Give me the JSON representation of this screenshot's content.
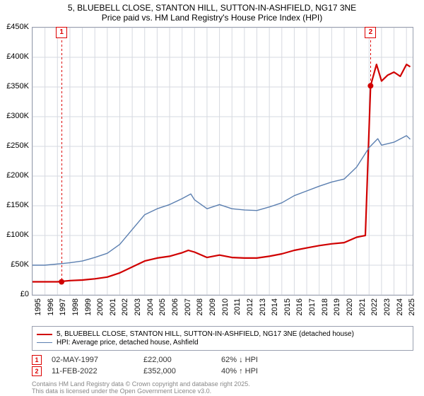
{
  "title": {
    "line1": "5, BLUEBELL CLOSE, STANTON HILL, SUTTON-IN-ASHFIELD, NG17 3NE",
    "line2": "Price paid vs. HM Land Registry's House Price Index (HPI)",
    "fontsize": 12,
    "color": "#000000"
  },
  "chart": {
    "type": "line",
    "background_color": "#ffffff",
    "border_color": "#9aa0b0",
    "grid_color": "#d6d9e0",
    "x": {
      "min": 1995,
      "max": 2025.5,
      "ticks": [
        1995,
        1996,
        1997,
        1998,
        1999,
        2000,
        2001,
        2002,
        2003,
        2004,
        2005,
        2006,
        2007,
        2008,
        2009,
        2010,
        2011,
        2012,
        2013,
        2014,
        2015,
        2016,
        2017,
        2018,
        2019,
        2020,
        2021,
        2022,
        2023,
        2024,
        2025
      ],
      "tick_fontsize": 11
    },
    "y": {
      "min": 0,
      "max": 450000,
      "step": 50000,
      "ticks": [
        0,
        50000,
        100000,
        150000,
        200000,
        250000,
        300000,
        350000,
        400000,
        450000
      ],
      "tick_labels": [
        "£0",
        "£50K",
        "£100K",
        "£150K",
        "£200K",
        "£250K",
        "£300K",
        "£350K",
        "£400K",
        "£450K"
      ],
      "tick_fontsize": 11
    },
    "series": [
      {
        "id": "property",
        "label": "5, BLUEBELL CLOSE, STANTON HILL, SUTTON-IN-ASHFIELD, NG17 3NE (detached house)",
        "color": "#d00000",
        "line_width": 2.2,
        "points": [
          [
            1995,
            22000
          ],
          [
            1996,
            22000
          ],
          [
            1997,
            22000
          ],
          [
            1998,
            24000
          ],
          [
            1999,
            25000
          ],
          [
            2000,
            27000
          ],
          [
            2001,
            30000
          ],
          [
            2002,
            37000
          ],
          [
            2003,
            47000
          ],
          [
            2004,
            57000
          ],
          [
            2005,
            62000
          ],
          [
            2006,
            65000
          ],
          [
            2007,
            71000
          ],
          [
            2007.5,
            75000
          ],
          [
            2008,
            72000
          ],
          [
            2009,
            63000
          ],
          [
            2010,
            67000
          ],
          [
            2011,
            63000
          ],
          [
            2012,
            62000
          ],
          [
            2013,
            62000
          ],
          [
            2014,
            65000
          ],
          [
            2015,
            69000
          ],
          [
            2016,
            75000
          ],
          [
            2017,
            79000
          ],
          [
            2018,
            83000
          ],
          [
            2019,
            86000
          ],
          [
            2020,
            88000
          ],
          [
            2021,
            97000
          ],
          [
            2021.7,
            100000
          ],
          [
            2022.12,
            352000
          ],
          [
            2022.6,
            388000
          ],
          [
            2023,
            360000
          ],
          [
            2023.5,
            370000
          ],
          [
            2024,
            375000
          ],
          [
            2024.5,
            368000
          ],
          [
            2025,
            388000
          ],
          [
            2025.3,
            384000
          ]
        ]
      },
      {
        "id": "hpi",
        "label": "HPI: Average price, detached house, Ashfield",
        "color": "#5b7fb0",
        "line_width": 1.4,
        "points": [
          [
            1995,
            50000
          ],
          [
            1996,
            50000
          ],
          [
            1997,
            52000
          ],
          [
            1998,
            54000
          ],
          [
            1999,
            57000
          ],
          [
            2000,
            63000
          ],
          [
            2001,
            70000
          ],
          [
            2002,
            85000
          ],
          [
            2003,
            110000
          ],
          [
            2004,
            135000
          ],
          [
            2005,
            145000
          ],
          [
            2006,
            152000
          ],
          [
            2007,
            162000
          ],
          [
            2007.7,
            170000
          ],
          [
            2008,
            160000
          ],
          [
            2009,
            145000
          ],
          [
            2010,
            152000
          ],
          [
            2011,
            145000
          ],
          [
            2012,
            143000
          ],
          [
            2013,
            142000
          ],
          [
            2014,
            148000
          ],
          [
            2015,
            155000
          ],
          [
            2016,
            167000
          ],
          [
            2017,
            175000
          ],
          [
            2018,
            183000
          ],
          [
            2019,
            190000
          ],
          [
            2020,
            195000
          ],
          [
            2021,
            215000
          ],
          [
            2022,
            248000
          ],
          [
            2022.7,
            263000
          ],
          [
            2023,
            252000
          ],
          [
            2024,
            257000
          ],
          [
            2025,
            268000
          ],
          [
            2025.3,
            262000
          ]
        ]
      }
    ],
    "markers": [
      {
        "n": "1",
        "x": 1997.33,
        "y": 22000,
        "date": "02-MAY-1997",
        "price": "£22,000",
        "delta": "62% ↓ HPI"
      },
      {
        "n": "2",
        "x": 2022.12,
        "y": 352000,
        "date": "11-FEB-2022",
        "price": "£352,000",
        "delta": "40% ↑ HPI"
      }
    ]
  },
  "legend": {
    "border_color": "#9aa0b0",
    "fontsize": 10
  },
  "footer": {
    "line1": "Contains HM Land Registry data © Crown copyright and database right 2025.",
    "line2": "This data is licensed under the Open Government Licence v3.0.",
    "color": "#888888",
    "fontsize": 9
  }
}
